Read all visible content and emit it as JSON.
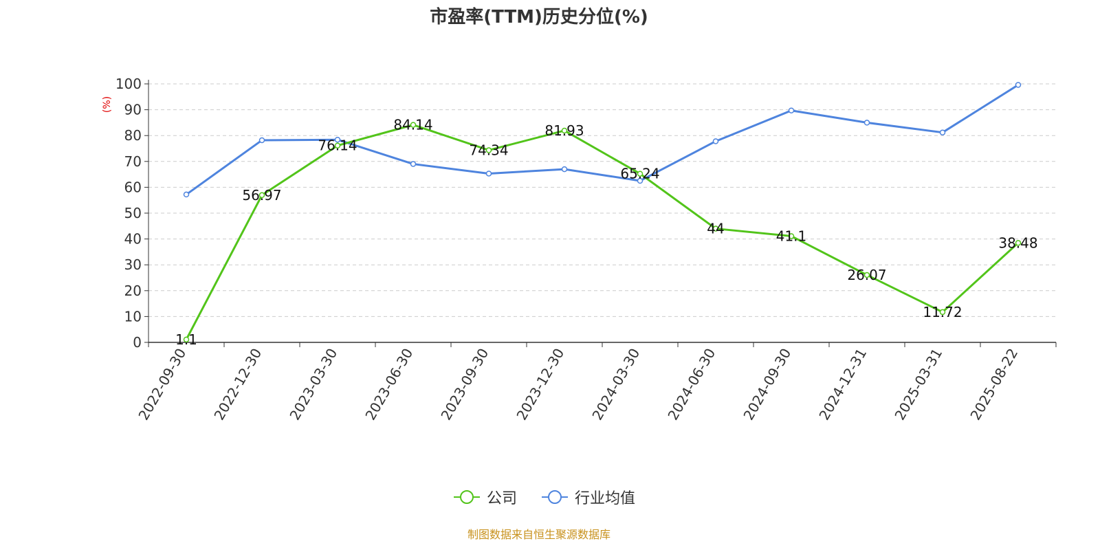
{
  "chart_data": {
    "type": "line",
    "title": "市盈率(TTM)历史分位(%)",
    "ylabel": "(%)",
    "xlabel": "",
    "ylim": [
      0,
      100
    ],
    "yticks": [
      0,
      10,
      20,
      30,
      40,
      50,
      60,
      70,
      80,
      90,
      100
    ],
    "categories": [
      "2022-09-30",
      "2022-12-30",
      "2023-03-30",
      "2023-06-30",
      "2023-09-30",
      "2023-12-30",
      "2024-03-30",
      "2024-06-30",
      "2024-09-30",
      "2024-12-31",
      "2025-03-31",
      "2025-08-22"
    ],
    "series": [
      {
        "name": "公司",
        "color": "#52c41a",
        "show_labels": true,
        "values": [
          1.1,
          56.97,
          76.14,
          84.14,
          74.34,
          81.93,
          65.24,
          44,
          41.1,
          26.07,
          11.72,
          38.48
        ]
      },
      {
        "name": "行业均值",
        "color": "#4e84de",
        "show_labels": false,
        "values": [
          57.2,
          78.2,
          78.4,
          69.0,
          65.3,
          67.0,
          62.5,
          77.8,
          89.7,
          85.0,
          81.2,
          99.6
        ]
      }
    ],
    "grid": true,
    "legend_position": "bottom-center"
  },
  "footer": {
    "source": "制图数据来自恒生聚源数据库"
  }
}
